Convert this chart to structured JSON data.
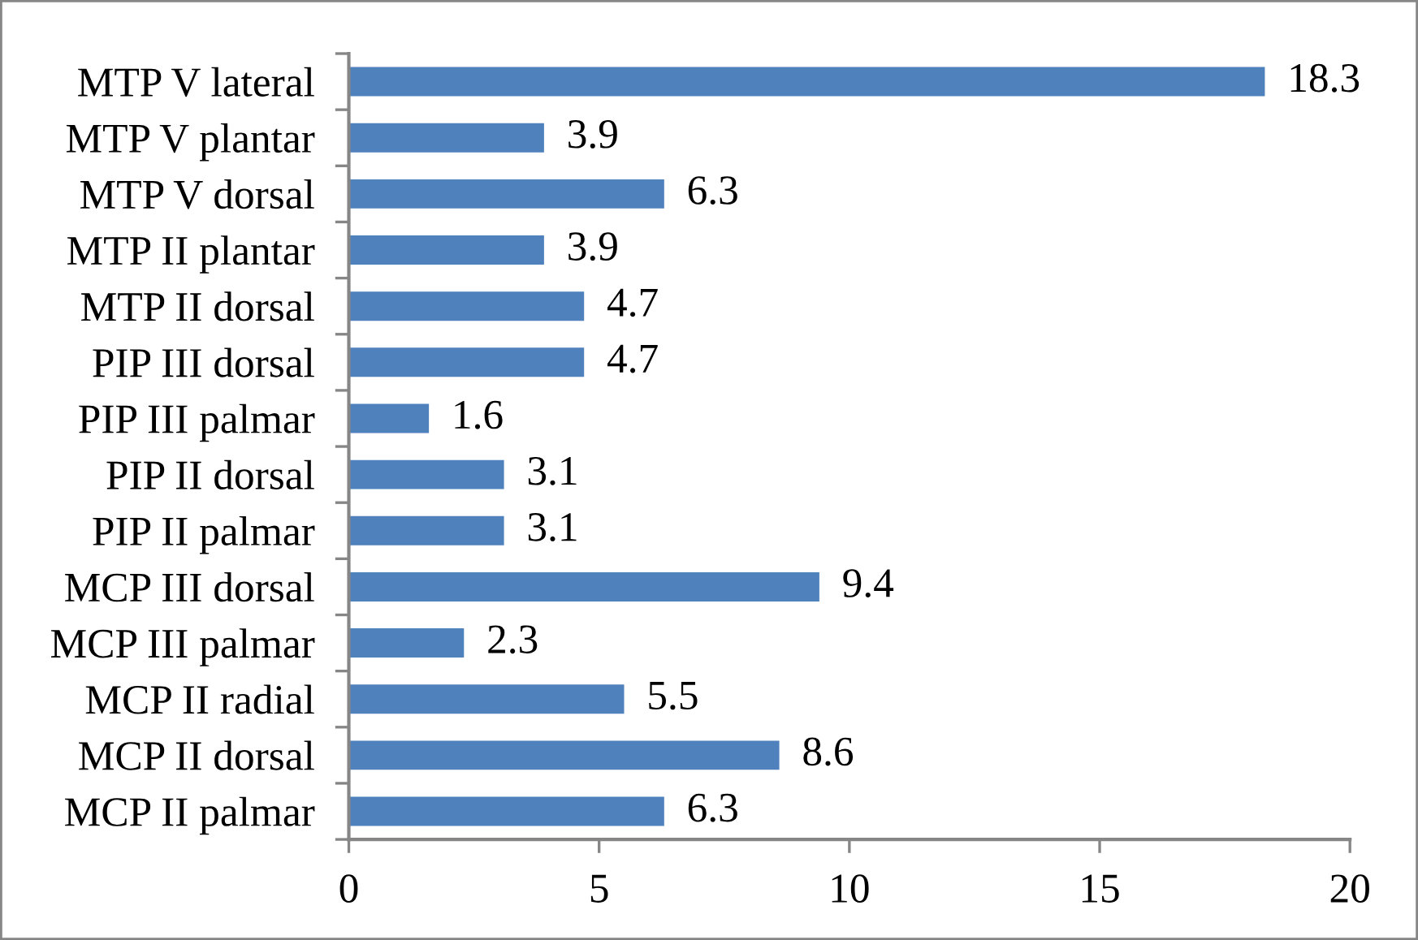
{
  "chart_data": {
    "type": "bar",
    "orientation": "horizontal",
    "categories": [
      "MTP V lateral",
      "MTP V plantar",
      "MTP V dorsal",
      "MTP II plantar",
      "MTP II dorsal",
      "PIP III dorsal",
      "PIP III palmar",
      "PIP II dorsal",
      "PIP II palmar",
      "MCP III dorsal",
      "MCP III palmar",
      "MCP II radial",
      "MCP II dorsal",
      "MCP II palmar"
    ],
    "values": [
      18.3,
      3.9,
      6.3,
      3.9,
      4.7,
      4.7,
      1.6,
      3.1,
      3.1,
      9.4,
      2.3,
      5.5,
      8.6,
      6.3
    ],
    "color": "#4f81bd",
    "xlim": [
      0,
      20
    ],
    "xticks": [
      0,
      5,
      10,
      15,
      20
    ],
    "data_labels": true
  }
}
